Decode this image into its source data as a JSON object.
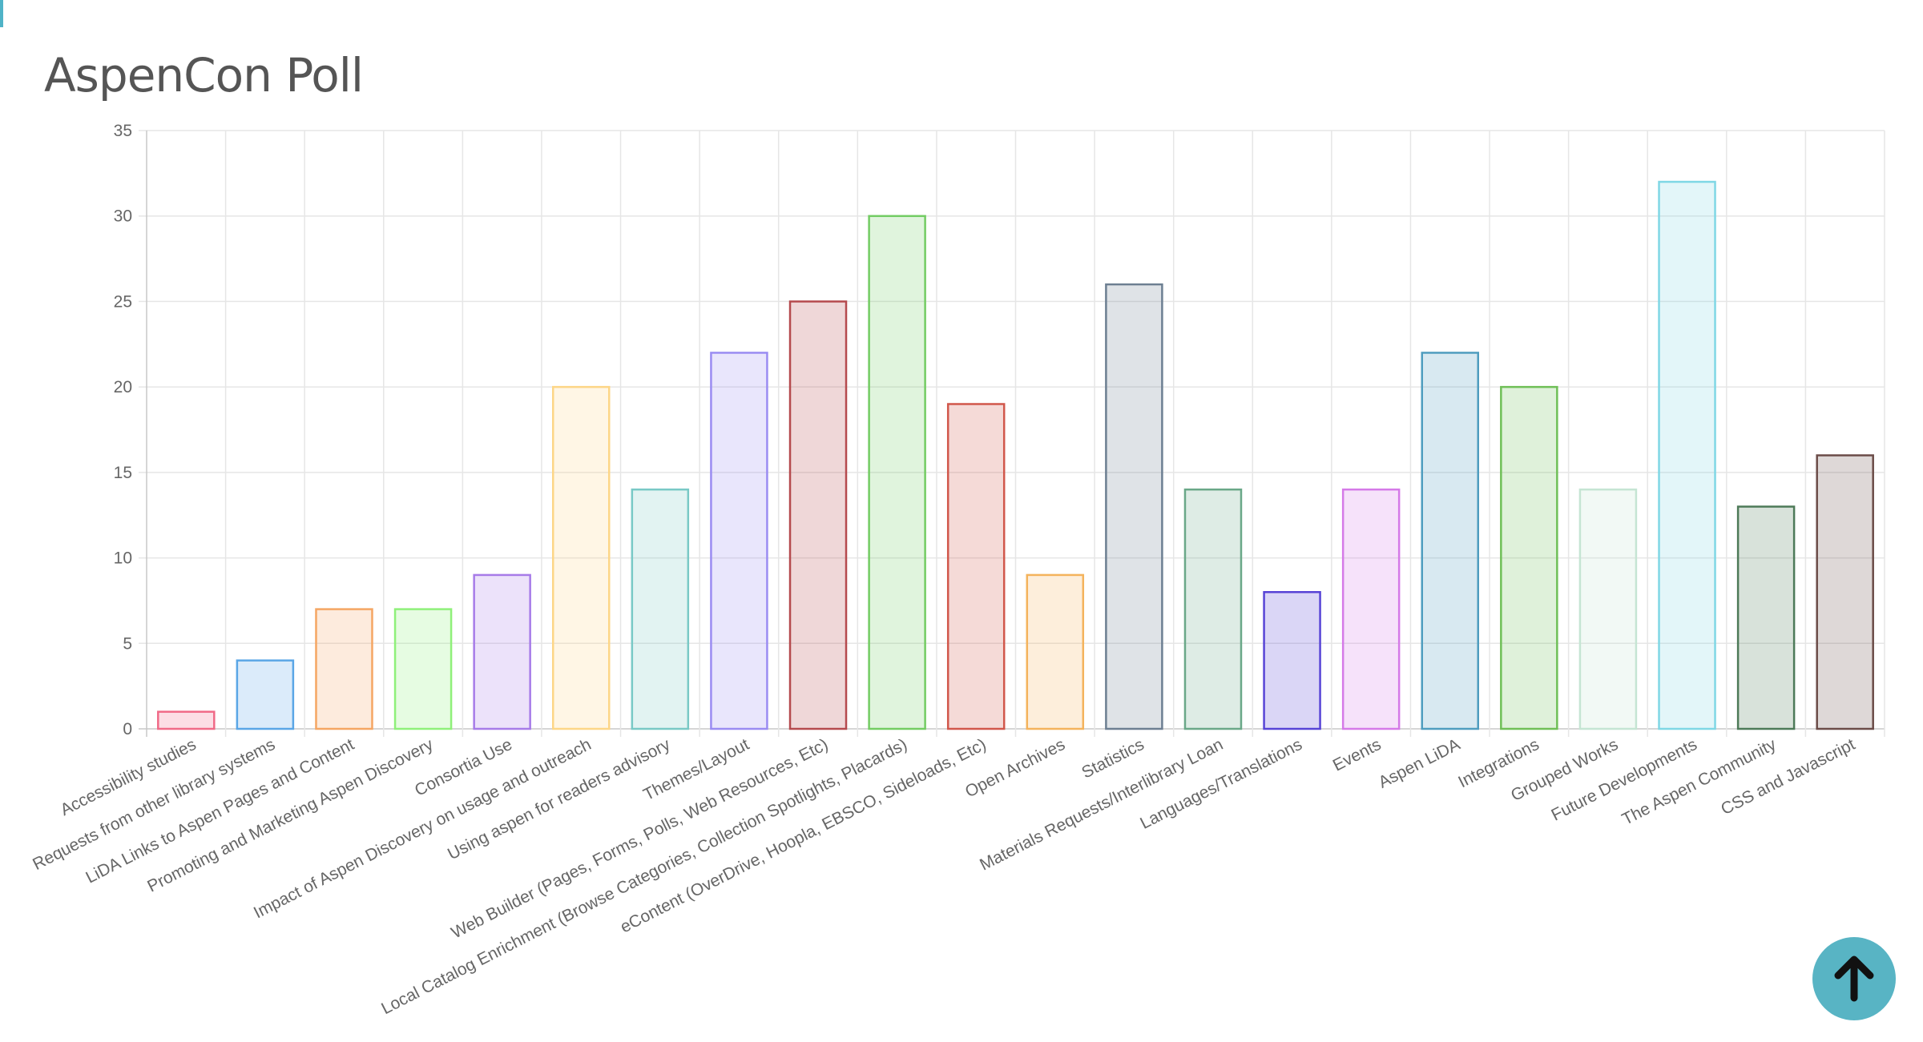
{
  "page": {
    "title": "AspenCon Poll"
  },
  "scroll_top": {
    "icon": "arrow-up-icon"
  },
  "chart_data": {
    "type": "bar",
    "title": "",
    "xlabel": "",
    "ylabel": "",
    "ylim": [
      0,
      35
    ],
    "yticks": [
      0,
      5,
      10,
      15,
      20,
      25,
      30,
      35
    ],
    "grid": true,
    "legend": "none",
    "categories": [
      "Accessibility studies",
      "Requests from other library systems",
      "LiDA Links to Aspen Pages and Content",
      "Promoting and Marketing Aspen Discovery",
      "Consortia Use",
      "Impact of Aspen Discovery on usage and outreach",
      "Using aspen for readers advisory",
      "Themes/Layout",
      "Web Builder (Pages, Forms, Polls, Web Resources, Etc)",
      "Local Catalog Enrichment (Browse Categories, Collection Spotlights, Placards)",
      "eContent (OverDrive, Hoopla, EBSCO, Sideloads, Etc)",
      "Open Archives",
      "Statistics",
      "Materials Requests/Interlibrary Loan",
      "Languages/Translations",
      "Events",
      "Aspen LiDA",
      "Integrations",
      "Grouped Works",
      "Future Developments",
      "The Aspen Community",
      "CSS and Javascript"
    ],
    "values": [
      1,
      4,
      7,
      7,
      9,
      20,
      14,
      22,
      25,
      30,
      19,
      9,
      26,
      14,
      8,
      14,
      22,
      20,
      14,
      32,
      13,
      16
    ],
    "colors": [
      "#f06a87",
      "#5aa6e6",
      "#f5a663",
      "#8ff07a",
      "#a77be8",
      "#fdd687",
      "#79c9c6",
      "#9a8cf2",
      "#b54a4e",
      "#73cc63",
      "#d1574b",
      "#f4b35c",
      "#6d7f92",
      "#6aa888",
      "#5744d6",
      "#d57ae8",
      "#4f9dbf",
      "#6fbf57",
      "#c5e5d3",
      "#7fd7e5",
      "#4d7a58",
      "#6b4c48"
    ]
  }
}
